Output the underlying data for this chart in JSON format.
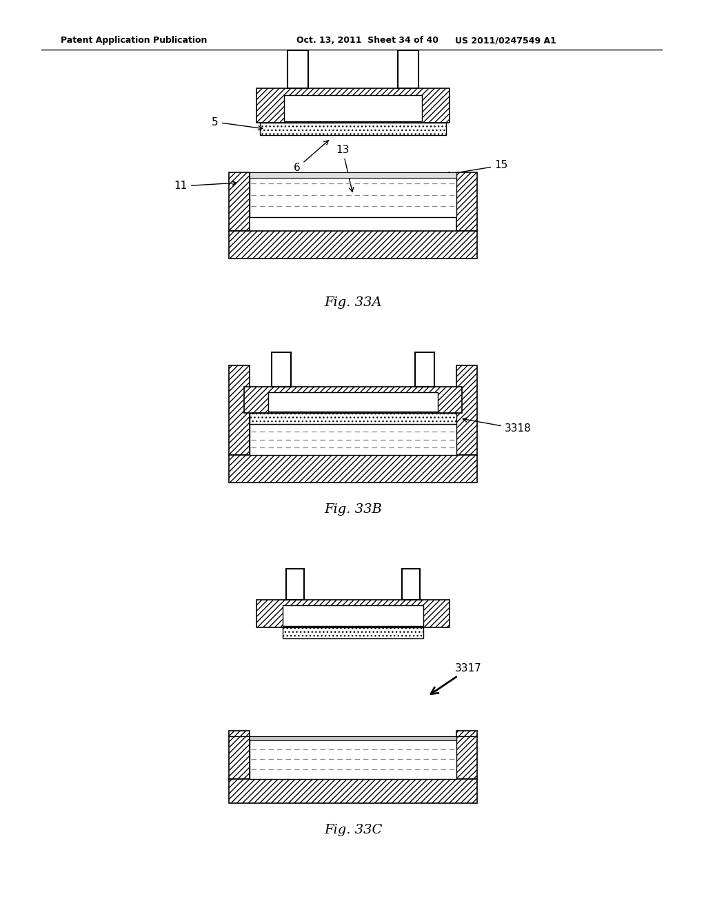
{
  "bg_color": "#ffffff",
  "line_color": "#000000",
  "header_left": "Patent Application Publication",
  "header_mid": "Oct. 13, 2011  Sheet 34 of 40",
  "header_right": "US 2011/0247549 A1",
  "fig_labels": [
    "Fig. 33A",
    "Fig. 33B",
    "Fig. 33C"
  ]
}
